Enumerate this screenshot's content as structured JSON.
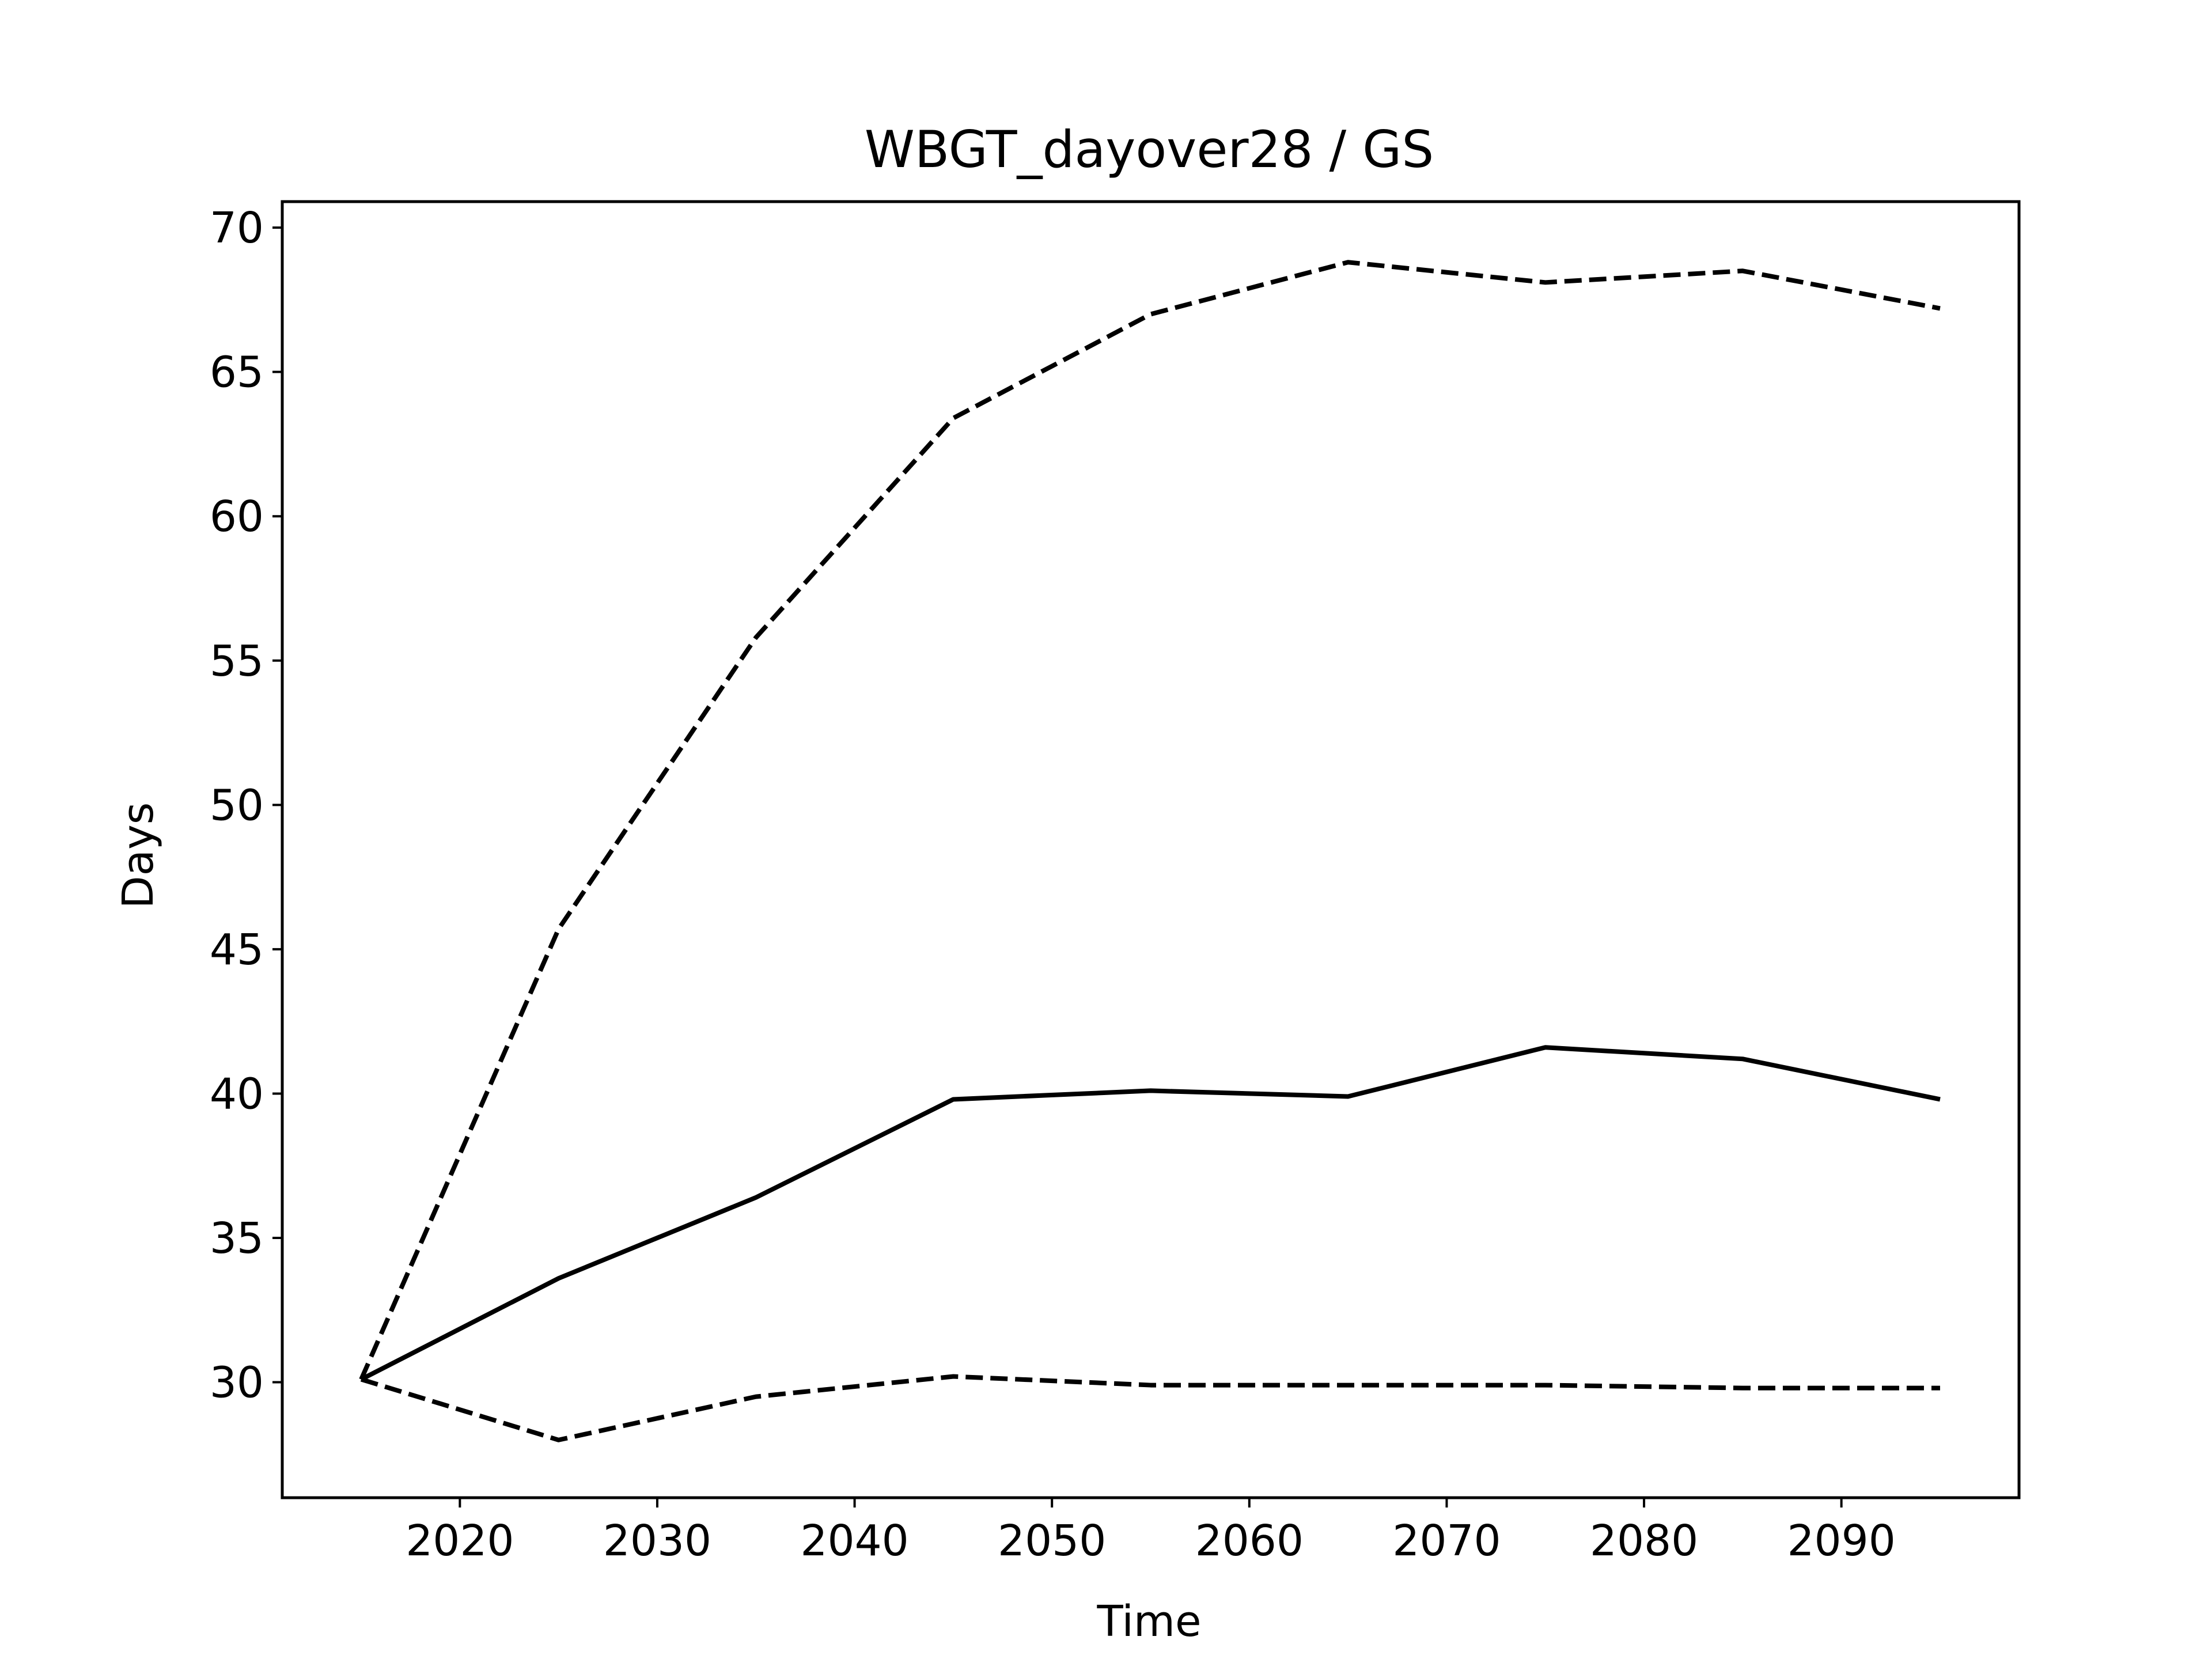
{
  "chart_data": {
    "type": "line",
    "title": "WBGT_dayover28 / GS",
    "xlabel": "Time",
    "ylabel": "Days",
    "x": [
      2015,
      2025,
      2035,
      2045,
      2055,
      2065,
      2075,
      2085,
      2095
    ],
    "xlim": [
      2011,
      2099
    ],
    "ylim": [
      26,
      70.9
    ],
    "xticks": [
      2020,
      2030,
      2040,
      2050,
      2060,
      2070,
      2080,
      2090
    ],
    "yticks": [
      30,
      35,
      40,
      45,
      50,
      55,
      60,
      65,
      70
    ],
    "grid": false,
    "legend": "none",
    "series": [
      {
        "line_style": "solid",
        "color": "#000000",
        "values": [
          30.1,
          33.6,
          36.4,
          39.8,
          40.1,
          39.9,
          41.6,
          41.2,
          39.8
        ]
      },
      {
        "line_style": "dashed",
        "color": "#000000",
        "values": [
          30.1,
          45.7,
          55.8,
          63.4,
          67.0,
          68.8,
          68.1,
          68.5,
          67.2
        ]
      },
      {
        "line_style": "dashed",
        "color": "#000000",
        "values": [
          30.1,
          28.0,
          29.5,
          30.2,
          29.9,
          29.9,
          29.9,
          29.8,
          29.8
        ]
      }
    ]
  }
}
